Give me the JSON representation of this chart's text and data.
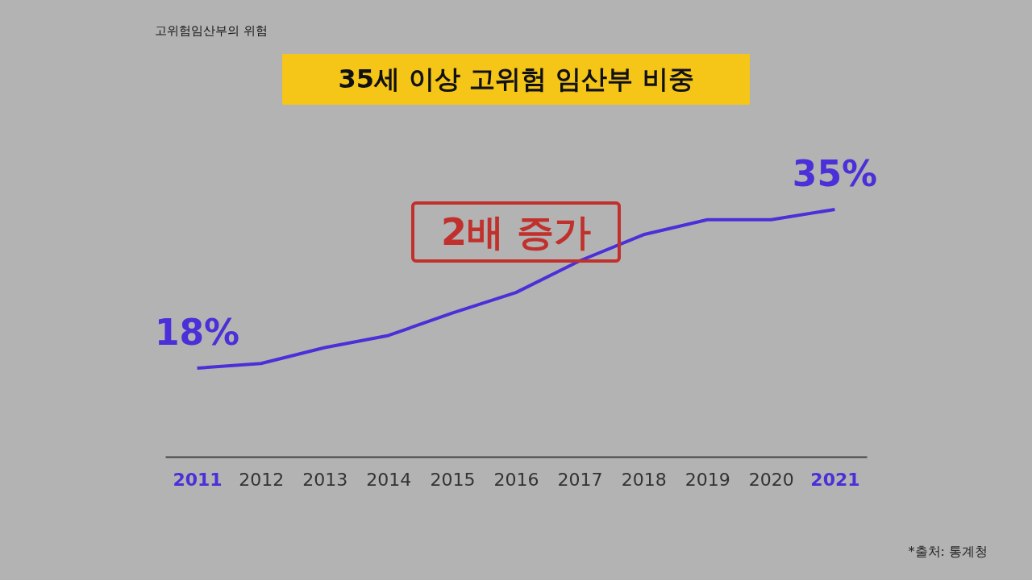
{
  "chart_data": {
    "type": "line",
    "title": "35세 이상 고위험 임산부 비중",
    "categories": [
      "2011",
      "2012",
      "2013",
      "2014",
      "2015",
      "2016",
      "2017",
      "2018",
      "2019",
      "2020",
      "2021"
    ],
    "series": [
      {
        "color": "#4b2fd8",
        "values": [
          18,
          18.5,
          20.2,
          21.5,
          23.9,
          26.1,
          29.5,
          32.3,
          33.9,
          33.9,
          35
        ],
        "value_labels": [
          "18%",
          null,
          null,
          null,
          null,
          null,
          null,
          null,
          null,
          null,
          "35%"
        ]
      }
    ],
    "tick_labels": "x",
    "grid": false,
    "marker": "none",
    "line_style": "solid",
    "annotations": [
      "2배 증가",
      "고위험임산부의 위험",
      "*출처: 통계청"
    ]
  }
}
